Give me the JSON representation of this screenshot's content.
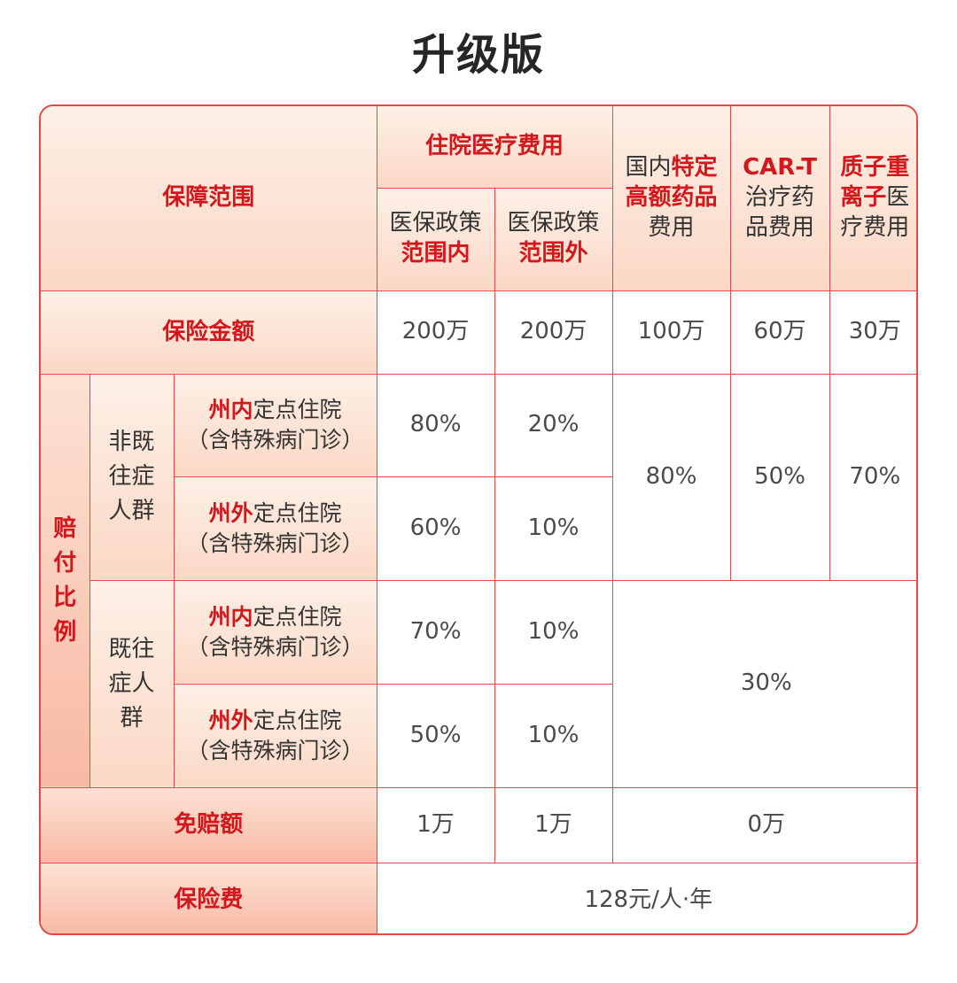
{
  "title": "升级版",
  "header": {
    "coverage": "保障范围",
    "inpatient": "住院医疗费用",
    "in_policy": [
      "医保政策",
      "范围内"
    ],
    "out_policy": [
      "医保政策",
      "范围外"
    ],
    "special_drug": [
      "国内",
      "特定",
      "高额药品",
      "费用"
    ],
    "cart": [
      "CAR-T",
      "治疗药",
      "品费用"
    ],
    "proton": [
      "质子重",
      "离子",
      "医",
      "疗费用"
    ]
  },
  "sum_insured": {
    "label": "保险金额",
    "values": [
      "200万",
      "200万",
      "100万",
      "60万",
      "30万"
    ]
  },
  "payout": {
    "label": "赔付比例",
    "non_preexisting": "非既往症人群",
    "preexisting": "既往症人群",
    "rows": [
      {
        "prefix": "州内",
        "label": "定点住院",
        "sub": "（含特殊病门诊）",
        "in": "80%",
        "out": "20%"
      },
      {
        "prefix": "州外",
        "label": "定点住院",
        "sub": "（含特殊病门诊）",
        "in": "60%",
        "out": "10%"
      },
      {
        "prefix": "州内",
        "label": "定点住院",
        "sub": "（含特殊病门诊）",
        "in": "70%",
        "out": "10%"
      },
      {
        "prefix": "州外",
        "label": "定点住院",
        "sub": "（含特殊病门诊）",
        "in": "50%",
        "out": "10%"
      }
    ],
    "special_drug": "80%",
    "cart": "50%",
    "proton": "70%",
    "preexisting_other": "30%"
  },
  "deductible": {
    "label": "免赔额",
    "in": "1万",
    "out": "1万",
    "other": "0万"
  },
  "premium": {
    "label": "保险费",
    "value": "128元/人·年"
  },
  "colors": {
    "accent": "#d4171d",
    "border": "#e4494a",
    "header_bg": "#fbd8c6"
  }
}
